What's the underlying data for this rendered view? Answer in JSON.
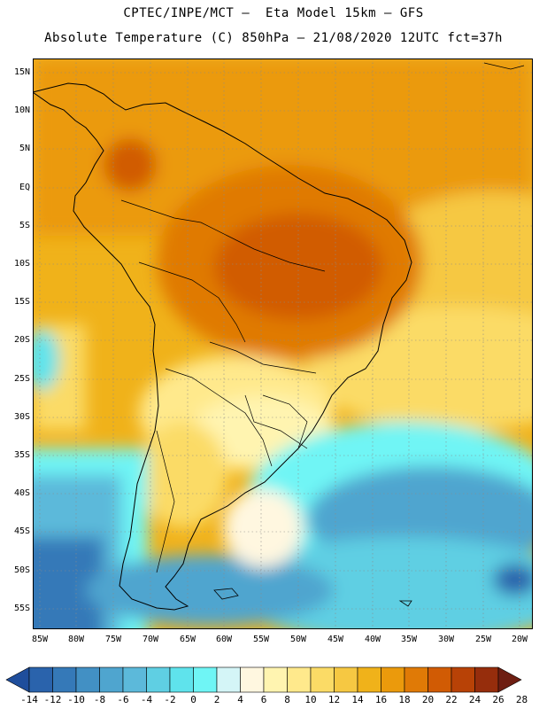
{
  "header": {
    "line1": "CPTEC/INPE/MCT –  Eta Model 15km – GFS",
    "line2": "Absolute Temperature (C) 850hPa – 21/08/2020 12UTC fct=37h"
  },
  "map": {
    "lat_labels": [
      "15N",
      "10N",
      "5N",
      "EQ",
      "5S",
      "10S",
      "15S",
      "20S",
      "25S",
      "30S",
      "35S",
      "40S",
      "45S",
      "50S",
      "55S"
    ],
    "lon_labels": [
      "85W",
      "80W",
      "75W",
      "70W",
      "65W",
      "60W",
      "55W",
      "50W",
      "45W",
      "40W",
      "35W",
      "30W",
      "25W",
      "20W"
    ]
  },
  "legend": {
    "labels": [
      "-14",
      "-12",
      "-10",
      "-8",
      "-6",
      "-4",
      "-2",
      "0",
      "2",
      "4",
      "6",
      "8",
      "10",
      "12",
      "14",
      "16",
      "18",
      "20",
      "22",
      "24",
      "26",
      "28"
    ],
    "colors": [
      "#1f4e9c",
      "#2a63ac",
      "#3579b8",
      "#4290c4",
      "#4fa5cf",
      "#5cb9da",
      "#5fcfe3",
      "#5fe3ec",
      "#6ff5f5",
      "#d4f5f7",
      "#fff7e0",
      "#fff4b0",
      "#ffe98c",
      "#fbdb66",
      "#f6c842",
      "#f0b21a",
      "#eb9a0c",
      "#e07a06",
      "#d15b04",
      "#b84206",
      "#962d0c",
      "#6e1e12"
    ]
  }
}
